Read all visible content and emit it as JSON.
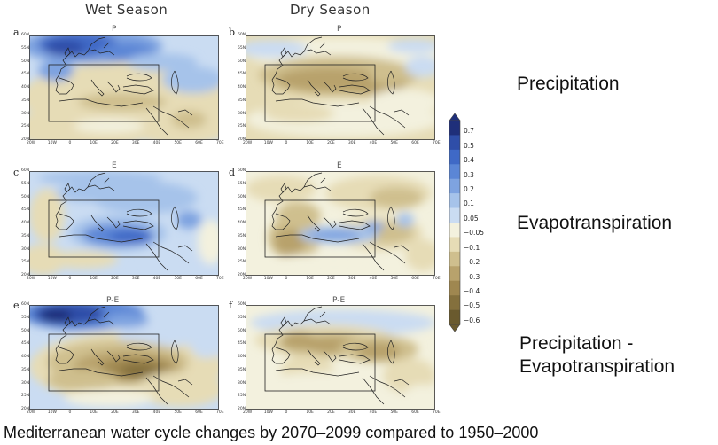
{
  "columns": {
    "wet": "Wet Season",
    "dry": "Dry Season"
  },
  "panels": [
    {
      "letter": "a",
      "var": "P",
      "season": "wet",
      "scheme": "wet-P"
    },
    {
      "letter": "b",
      "var": "P",
      "season": "dry",
      "scheme": "dry-P"
    },
    {
      "letter": "c",
      "var": "E",
      "season": "wet",
      "scheme": "wet-E"
    },
    {
      "letter": "d",
      "var": "E",
      "season": "dry",
      "scheme": "dry-E"
    },
    {
      "letter": "e",
      "var": "P-E",
      "season": "wet",
      "scheme": "wet-PE"
    },
    {
      "letter": "f",
      "var": "P-E",
      "season": "dry",
      "scheme": "dry-PE"
    }
  ],
  "row_labels": {
    "precip": "Precipitation",
    "evap": "Evapotranspiration",
    "pe_line1": "Precipitation -",
    "pe_line2": "Evapotranspiration"
  },
  "colorbar": {
    "labels": [
      "0.7",
      "0.5",
      "0.4",
      "0.3",
      "0.2",
      "0.1",
      "0.05",
      "−0.05",
      "−0.1",
      "−0.2",
      "−0.3",
      "−0.4",
      "−0.5",
      "−0.6"
    ],
    "colors": [
      "#1f2f7a",
      "#2f4ea8",
      "#3f69c6",
      "#5b86d6",
      "#7ea3e0",
      "#a6c3ea",
      "#cadcf2",
      "#f3f1de",
      "#e6dcb6",
      "#cfbf8e",
      "#b8a26c",
      "#9f8750",
      "#84703d",
      "#6a5a2e"
    ]
  },
  "lat_ticks": [
    "60N",
    "55N",
    "50N",
    "45N",
    "40N",
    "35N",
    "30N",
    "25N",
    "20N"
  ],
  "lon_ticks": [
    "20W",
    "10W",
    "0",
    "10E",
    "20E",
    "30E",
    "40E",
    "50E",
    "60E",
    "70E"
  ],
  "caption": "Mediterranean water cycle changes by 2070–2099 compared to 1950–2000"
}
